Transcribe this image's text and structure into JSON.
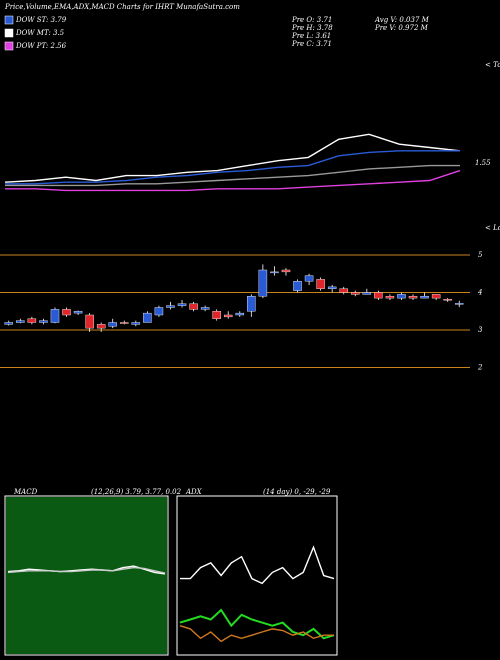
{
  "chart_data": [
    {
      "type": "candlestick",
      "title": "Price,Volume,EMA,ADX,MACD Charts for IHRT MunafaSutra.com",
      "legend": [
        {
          "name": "DOW ST: 3.79",
          "color": "#2a5bd7"
        },
        {
          "name": "DOW MT: 3.5",
          "color": "#ffffff"
        },
        {
          "name": "DOW PT: 2.56",
          "color": "#e040e0"
        }
      ],
      "info": [
        "Pre O: 3.71",
        "Pre H: 3.78",
        "Pre L: 3.61",
        "Pre C: 3.71"
      ],
      "info2": [
        "Avg V: 0.037 M",
        "Pre V: 0.972 M"
      ],
      "up_color": "#2a5bd7",
      "down_color": "#e0262b",
      "grid_color": "#c8821e",
      "ylim": [
        1.8,
        5.4
      ],
      "yticks": [
        2,
        3,
        4,
        5
      ],
      "open": [
        3.15,
        3.2,
        3.3,
        3.2,
        3.2,
        3.55,
        3.45,
        3.4,
        3.15,
        3.1,
        3.2,
        3.15,
        3.2,
        3.4,
        3.6,
        3.65,
        3.7,
        3.55,
        3.5,
        3.4,
        3.4,
        3.5,
        3.9,
        4.55,
        4.6,
        4.05,
        4.3,
        4.35,
        4.1,
        4.1,
        4.0,
        3.95,
        4.0,
        3.9,
        3.85,
        3.9,
        3.85,
        3.95,
        3.82,
        3.71
      ],
      "high": [
        3.25,
        3.3,
        3.35,
        3.3,
        3.6,
        3.6,
        3.52,
        3.45,
        3.2,
        3.3,
        3.25,
        3.25,
        3.5,
        3.65,
        3.75,
        3.8,
        3.75,
        3.65,
        3.55,
        3.5,
        3.5,
        3.95,
        4.75,
        4.7,
        4.65,
        4.35,
        4.5,
        4.4,
        4.2,
        4.15,
        4.05,
        4.1,
        4.05,
        3.95,
        4.0,
        3.95,
        4.0,
        3.95,
        3.85,
        3.78
      ],
      "low": [
        3.12,
        3.18,
        3.15,
        3.15,
        3.18,
        3.35,
        3.4,
        2.95,
        2.95,
        3.05,
        3.15,
        3.1,
        3.2,
        3.35,
        3.55,
        3.6,
        3.5,
        3.5,
        3.25,
        3.3,
        3.35,
        3.35,
        3.85,
        4.45,
        4.45,
        4.0,
        4.2,
        4.05,
        4.0,
        3.95,
        3.9,
        3.95,
        3.8,
        3.8,
        3.8,
        3.8,
        3.85,
        3.8,
        3.75,
        3.61
      ],
      "close": [
        3.2,
        3.25,
        3.2,
        3.25,
        3.55,
        3.4,
        3.5,
        3.05,
        3.05,
        3.2,
        3.18,
        3.2,
        3.45,
        3.6,
        3.65,
        3.7,
        3.55,
        3.6,
        3.3,
        3.35,
        3.45,
        3.9,
        4.6,
        4.55,
        4.55,
        4.3,
        4.45,
        4.1,
        4.15,
        4.0,
        3.95,
        4.0,
        3.85,
        3.85,
        3.95,
        3.85,
        3.9,
        3.85,
        3.8,
        3.71
      ]
    },
    {
      "type": "line",
      "ylim": [
        0,
        100
      ],
      "annotations": [
        "1.55",
        "< Tops",
        "< Lows"
      ],
      "series": [
        {
          "color": "#ffffff",
          "values": [
            29,
            30,
            32,
            30,
            33,
            33,
            35,
            36,
            39,
            42,
            44,
            55,
            58,
            52,
            50,
            48
          ]
        },
        {
          "color": "#2a5bd7",
          "values": [
            28,
            28,
            29,
            29,
            30,
            32,
            33,
            35,
            36,
            38,
            39,
            45,
            47,
            48,
            48,
            48
          ]
        },
        {
          "color": "#999999",
          "values": [
            27,
            27,
            27,
            27,
            28,
            28,
            29,
            30,
            31,
            32,
            33,
            35,
            37,
            38,
            39,
            39
          ]
        },
        {
          "color": "#e040e0",
          "values": [
            25,
            25,
            24,
            24,
            24,
            24,
            24,
            25,
            25,
            25,
            26,
            27,
            28,
            29,
            30,
            36
          ]
        }
      ]
    },
    {
      "type": "line",
      "title": "MACD",
      "subtitle": "(12,26,9) 3.79, 3.77, 0.02",
      "background": "#0a5a14",
      "ylim": [
        -1,
        1
      ],
      "series": [
        {
          "color": "#ffffff",
          "values": [
            0.05,
            0.06,
            0.08,
            0.07,
            0.06,
            0.05,
            0.06,
            0.07,
            0.08,
            0.07,
            0.06,
            0.1,
            0.12,
            0.08,
            0.04,
            0.02
          ]
        },
        {
          "color": "#cccccc",
          "values": [
            0.04,
            0.05,
            0.06,
            0.06,
            0.06,
            0.05,
            0.05,
            0.06,
            0.07,
            0.07,
            0.06,
            0.08,
            0.1,
            0.09,
            0.06,
            0.03
          ]
        }
      ]
    },
    {
      "type": "line",
      "title": "ADX",
      "subtitle": "(14 day) 0, -29, -29",
      "background": "#000000",
      "ylim": [
        0,
        100
      ],
      "series": [
        {
          "color": "#ffffff",
          "values": [
            48,
            48,
            55,
            58,
            50,
            58,
            62,
            48,
            45,
            52,
            55,
            48,
            52,
            68,
            50,
            48
          ]
        },
        {
          "color": "#22dd22",
          "values": [
            20,
            22,
            24,
            22,
            28,
            18,
            25,
            22,
            20,
            18,
            20,
            14,
            12,
            16,
            10,
            12
          ]
        },
        {
          "color": "#d2781e",
          "values": [
            18,
            16,
            10,
            14,
            8,
            12,
            10,
            12,
            14,
            16,
            15,
            12,
            14,
            10,
            12,
            12
          ]
        }
      ]
    }
  ]
}
